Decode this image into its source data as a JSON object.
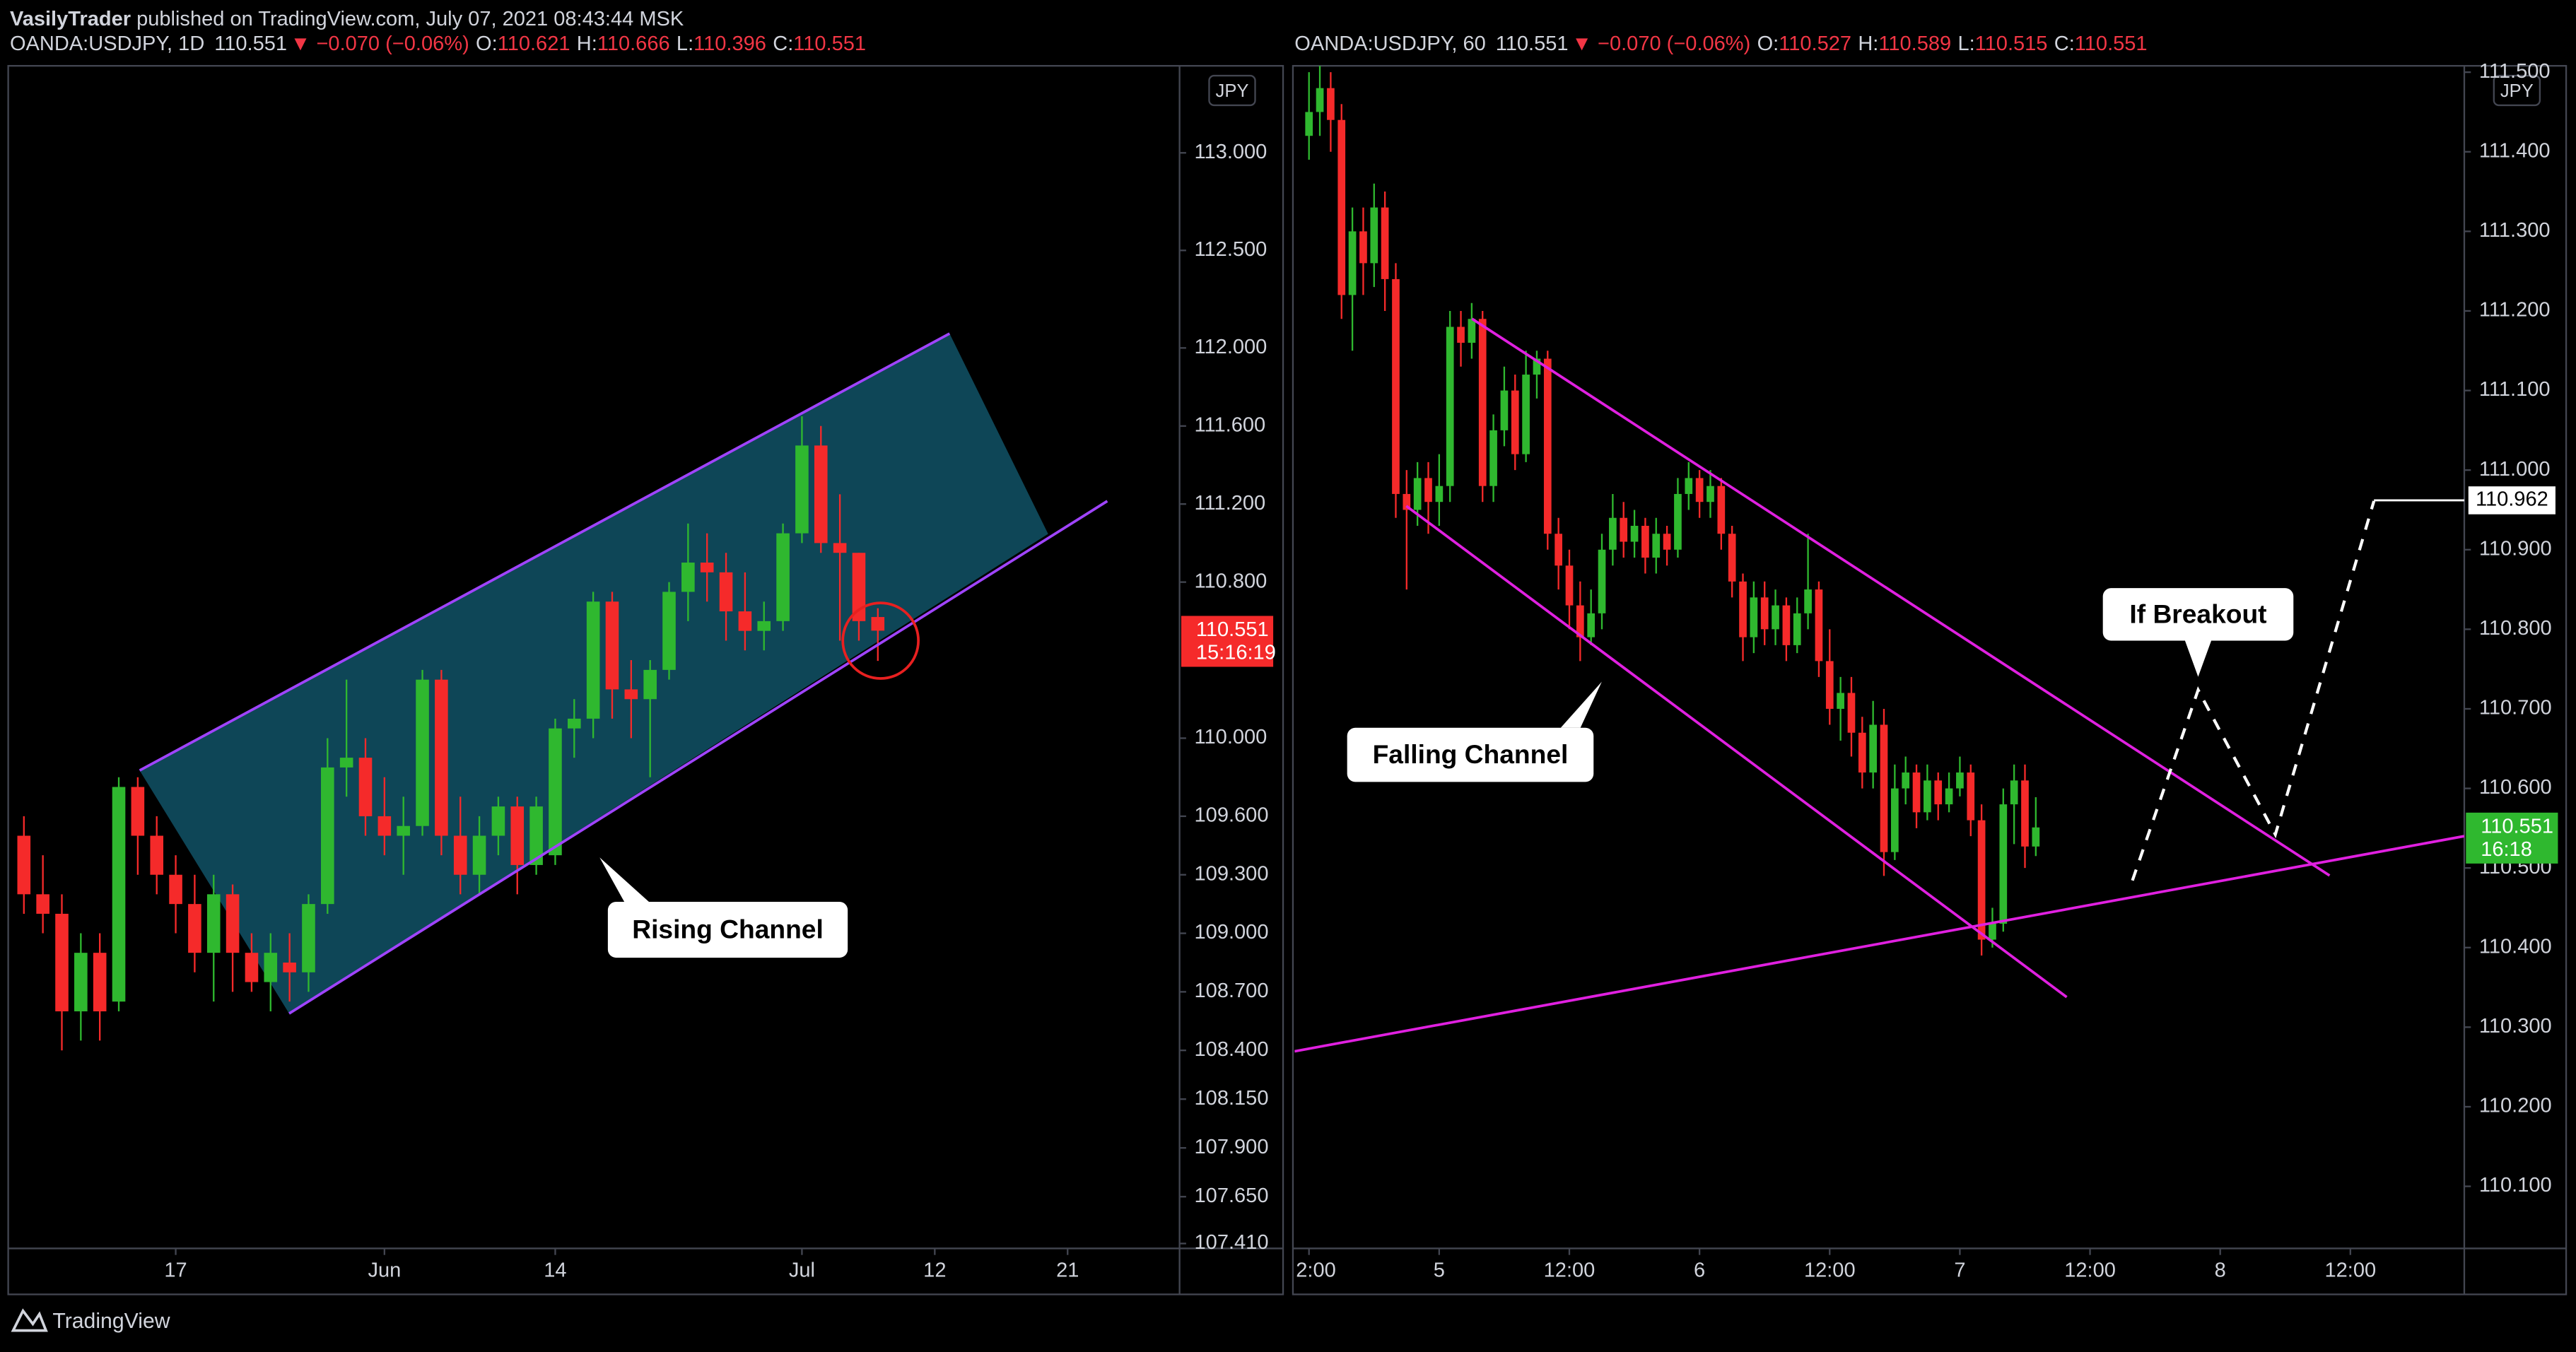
{
  "header": {
    "author": "VasilyTrader",
    "text": " published on TradingView.com, July 07, 2021 08:43:44 MSK"
  },
  "footer": {
    "brand": "TradingView"
  },
  "chart_data": [
    {
      "type": "candlestick",
      "legend": {
        "symbol": "OANDA:USDJPY, 1D",
        "price": "110.551",
        "change": "▼ −0.070 (−0.06%)",
        "items": [
          {
            "label": "O:",
            "value": "110.621"
          },
          {
            "label": "H:",
            "value": "110.666"
          },
          {
            "label": "L:",
            "value": "110.396"
          },
          {
            "label": "C:",
            "value": "110.551"
          }
        ]
      },
      "currency": "JPY",
      "up_color": "#2fb82f",
      "down_color": "#f52a2a",
      "x": [
        -8,
        -7,
        -6,
        -5,
        -4,
        -3,
        -2,
        -1,
        0,
        1,
        2,
        3,
        4,
        5,
        6,
        7,
        8,
        9,
        10,
        11,
        12,
        13,
        14,
        15,
        16,
        17,
        18,
        19,
        20,
        21,
        22,
        23,
        24,
        25,
        26,
        27,
        28,
        29,
        30,
        31,
        32,
        33,
        34,
        35,
        36,
        37
      ],
      "open": [
        109.5,
        109.2,
        109.1,
        108.6,
        108.9,
        108.65,
        109.75,
        109.5,
        109.3,
        109.15,
        108.9,
        109.2,
        108.9,
        108.75,
        108.85,
        108.8,
        109.15,
        109.85,
        109.9,
        109.6,
        109.5,
        109.55,
        110.3,
        109.5,
        109.3,
        109.5,
        109.65,
        109.35,
        109.4,
        110.05,
        110.1,
        110.7,
        110.25,
        110.2,
        110.35,
        110.75,
        110.9,
        110.85,
        110.65,
        110.55,
        110.6,
        111.05,
        111.5,
        111.0,
        110.95,
        110.621
      ],
      "high": [
        109.6,
        109.4,
        109.2,
        109.0,
        109.0,
        109.8,
        109.8,
        109.6,
        109.4,
        109.3,
        109.3,
        109.25,
        109.0,
        109.0,
        109.0,
        109.2,
        110.0,
        110.3,
        110.0,
        109.8,
        109.7,
        110.35,
        110.35,
        109.7,
        109.6,
        109.7,
        109.7,
        109.7,
        110.1,
        110.2,
        110.75,
        110.75,
        110.4,
        110.4,
        110.8,
        111.1,
        111.05,
        110.95,
        110.85,
        110.7,
        111.1,
        111.65,
        111.6,
        111.25,
        110.95,
        110.666
      ],
      "low": [
        109.1,
        109.0,
        108.4,
        108.45,
        108.45,
        108.6,
        109.3,
        109.2,
        109.0,
        108.8,
        108.65,
        108.7,
        108.7,
        108.6,
        108.65,
        108.7,
        109.1,
        109.7,
        109.5,
        109.4,
        109.3,
        109.5,
        109.4,
        109.2,
        109.2,
        109.4,
        109.2,
        109.3,
        109.35,
        109.9,
        110.0,
        110.1,
        110.0,
        109.8,
        110.3,
        110.6,
        110.7,
        110.5,
        110.45,
        110.45,
        110.55,
        111.0,
        110.95,
        110.5,
        110.5,
        110.396
      ],
      "close": [
        109.2,
        109.1,
        108.6,
        108.9,
        108.6,
        109.75,
        109.5,
        109.3,
        109.15,
        108.9,
        109.2,
        108.9,
        108.75,
        108.9,
        108.8,
        109.15,
        109.85,
        109.9,
        109.6,
        109.5,
        109.55,
        110.3,
        109.5,
        109.3,
        109.5,
        109.65,
        109.35,
        109.65,
        110.05,
        110.1,
        110.7,
        110.25,
        110.2,
        110.35,
        110.75,
        110.9,
        110.85,
        110.65,
        110.55,
        110.6,
        111.05,
        111.5,
        111.0,
        110.95,
        110.6,
        110.551
      ],
      "xlim": [
        -8.74,
        52.9
      ],
      "xticks": [
        {
          "value": 0,
          "label": "17"
        },
        {
          "value": 11,
          "label": "Jun"
        },
        {
          "value": 20,
          "label": "14"
        },
        {
          "value": 33,
          "label": "Jul"
        },
        {
          "value": 40,
          "label": "12"
        },
        {
          "value": 47,
          "label": "21"
        }
      ],
      "ylim": [
        107.385,
        113.446
      ],
      "yticks": [
        {
          "value": 113,
          "label": "113.000"
        },
        {
          "value": 112.5,
          "label": "112.500"
        },
        {
          "value": 112,
          "label": "112.000"
        },
        {
          "value": 111.6,
          "label": "111.600"
        },
        {
          "value": 111.2,
          "label": "111.200"
        },
        {
          "value": 110.8,
          "label": "110.800"
        },
        {
          "value": 110,
          "label": "110.000"
        },
        {
          "value": 109.6,
          "label": "109.600"
        },
        {
          "value": 109.3,
          "label": "109.300"
        },
        {
          "value": 109,
          "label": "109.000"
        },
        {
          "value": 108.7,
          "label": "108.700"
        },
        {
          "value": 108.4,
          "label": "108.400"
        },
        {
          "value": 108.15,
          "label": "108.150"
        },
        {
          "value": 107.9,
          "label": "107.900"
        },
        {
          "value": 107.65,
          "label": "107.650"
        },
        {
          "value": 107.41,
          "label": "107.410"
        }
      ],
      "last_price": 110.551,
      "countdown": "15:16:19",
      "annotations": [
        "Rising Channel"
      ]
    },
    {
      "type": "candlestick",
      "legend": {
        "symbol": "OANDA:USDJPY, 60",
        "price": "110.551",
        "change": "▼ −0.070 (−0.06%)",
        "items": [
          {
            "label": "O:",
            "value": "110.527"
          },
          {
            "label": "H:",
            "value": "110.589"
          },
          {
            "label": "L:",
            "value": "110.515"
          },
          {
            "label": "C:",
            "value": "110.551"
          }
        ]
      },
      "currency": "JPY",
      "up_color": "#2fb82f",
      "down_color": "#f52a2a",
      "x": [
        -12,
        -11,
        -10,
        -9,
        -8,
        -7,
        -6,
        -5,
        -4,
        -3,
        -2,
        -1,
        0,
        1,
        2,
        3,
        4,
        5,
        6,
        7,
        8,
        9,
        10,
        11,
        12,
        13,
        14,
        15,
        16,
        17,
        18,
        19,
        20,
        21,
        22,
        23,
        24,
        25,
        26,
        27,
        28,
        29,
        30,
        31,
        32,
        33,
        34,
        35,
        36,
        37,
        38,
        39,
        40,
        41,
        42,
        43,
        44,
        45,
        46,
        47,
        48,
        49,
        50,
        51,
        52,
        53,
        54,
        55
      ],
      "open": [
        111.42,
        111.45,
        111.48,
        111.44,
        111.22,
        111.3,
        111.26,
        111.33,
        111.24,
        110.97,
        110.95,
        110.99,
        110.96,
        110.98,
        111.18,
        111.16,
        111.19,
        110.98,
        111.05,
        111.1,
        111.02,
        111.12,
        111.14,
        110.92,
        110.88,
        110.83,
        110.79,
        110.82,
        110.9,
        110.94,
        110.91,
        110.93,
        110.89,
        110.92,
        110.9,
        110.97,
        110.99,
        110.96,
        110.98,
        110.92,
        110.86,
        110.79,
        110.84,
        110.8,
        110.83,
        110.78,
        110.82,
        110.85,
        110.76,
        110.7,
        110.72,
        110.67,
        110.62,
        110.68,
        110.52,
        110.6,
        110.62,
        110.57,
        110.61,
        110.58,
        110.6,
        110.62,
        110.56,
        110.41,
        110.43,
        110.58,
        110.61,
        110.527
      ],
      "high": [
        111.5,
        111.51,
        111.5,
        111.46,
        111.33,
        111.33,
        111.36,
        111.35,
        111.26,
        111.0,
        111.01,
        111.01,
        111.02,
        111.2,
        111.2,
        111.21,
        111.2,
        111.07,
        111.13,
        111.12,
        111.15,
        111.15,
        111.15,
        110.94,
        110.9,
        110.86,
        110.85,
        110.92,
        110.97,
        110.96,
        110.95,
        110.94,
        110.94,
        110.93,
        110.99,
        111.01,
        111.0,
        111.0,
        110.99,
        110.93,
        110.87,
        110.86,
        110.86,
        110.85,
        110.84,
        110.84,
        110.92,
        110.86,
        110.8,
        110.74,
        110.74,
        110.69,
        110.71,
        110.7,
        110.63,
        110.64,
        110.63,
        110.63,
        110.62,
        110.62,
        110.64,
        110.63,
        110.58,
        110.45,
        110.6,
        110.63,
        110.63,
        110.589
      ],
      "low": [
        111.39,
        111.42,
        111.4,
        111.19,
        111.15,
        111.22,
        111.23,
        111.2,
        110.94,
        110.85,
        110.93,
        110.92,
        110.93,
        110.96,
        111.13,
        111.14,
        110.96,
        110.96,
        111.03,
        111.0,
        111.01,
        111.09,
        110.9,
        110.85,
        110.8,
        110.76,
        110.78,
        110.8,
        110.88,
        110.89,
        110.89,
        110.87,
        110.87,
        110.88,
        110.89,
        110.95,
        110.94,
        110.94,
        110.9,
        110.84,
        110.76,
        110.77,
        110.78,
        110.78,
        110.76,
        110.77,
        110.8,
        110.74,
        110.68,
        110.66,
        110.64,
        110.6,
        110.6,
        110.49,
        110.51,
        110.58,
        110.55,
        110.56,
        110.56,
        110.57,
        110.59,
        110.54,
        110.39,
        110.4,
        110.42,
        110.53,
        110.5,
        110.515
      ],
      "close": [
        111.45,
        111.48,
        111.44,
        111.22,
        111.3,
        111.26,
        111.33,
        111.24,
        110.97,
        110.95,
        110.99,
        110.96,
        110.98,
        111.18,
        111.16,
        111.19,
        110.98,
        111.05,
        111.1,
        111.02,
        111.12,
        111.14,
        110.92,
        110.88,
        110.83,
        110.79,
        110.82,
        110.9,
        110.94,
        110.91,
        110.93,
        110.89,
        110.92,
        110.9,
        110.97,
        110.99,
        110.96,
        110.98,
        110.92,
        110.86,
        110.79,
        110.84,
        110.8,
        110.83,
        110.78,
        110.82,
        110.85,
        110.76,
        110.7,
        110.72,
        110.67,
        110.62,
        110.68,
        110.52,
        110.6,
        110.62,
        110.57,
        110.61,
        110.58,
        110.6,
        110.62,
        110.56,
        110.41,
        110.43,
        110.58,
        110.61,
        110.527,
        110.551
      ],
      "xlim": [
        -13.33,
        94.5
      ],
      "xticks": [
        {
          "value": -12,
          "label": "2:00"
        },
        {
          "value": 0,
          "label": "5"
        },
        {
          "value": 12,
          "label": "12:00"
        },
        {
          "value": 24,
          "label": "6"
        },
        {
          "value": 36,
          "label": "12:00"
        },
        {
          "value": 48,
          "label": "7"
        },
        {
          "value": 60,
          "label": "12:00"
        },
        {
          "value": 72,
          "label": "8"
        },
        {
          "value": 84,
          "label": "12:00"
        }
      ],
      "ylim": [
        110.022,
        111.508
      ],
      "yticks": [
        {
          "value": 111.5,
          "label": "111.500"
        },
        {
          "value": 111.4,
          "label": "111.400"
        },
        {
          "value": 111.3,
          "label": "111.300"
        },
        {
          "value": 111.2,
          "label": "111.200"
        },
        {
          "value": 111.1,
          "label": "111.100"
        },
        {
          "value": 111,
          "label": "111.000"
        },
        {
          "value": 110.9,
          "label": "110.900"
        },
        {
          "value": 110.8,
          "label": "110.800"
        },
        {
          "value": 110.7,
          "label": "110.700"
        },
        {
          "value": 110.6,
          "label": "110.600"
        },
        {
          "value": 110.5,
          "label": "110.500"
        },
        {
          "value": 110.4,
          "label": "110.400"
        },
        {
          "value": 110.3,
          "label": "110.300"
        },
        {
          "value": 110.2,
          "label": "110.200"
        },
        {
          "value": 110.1,
          "label": "110.100"
        }
      ],
      "last_price": 110.551,
      "countdown": "16:18",
      "target_price": 110.962,
      "annotations": [
        "Falling Channel",
        "If Breakout"
      ]
    }
  ]
}
